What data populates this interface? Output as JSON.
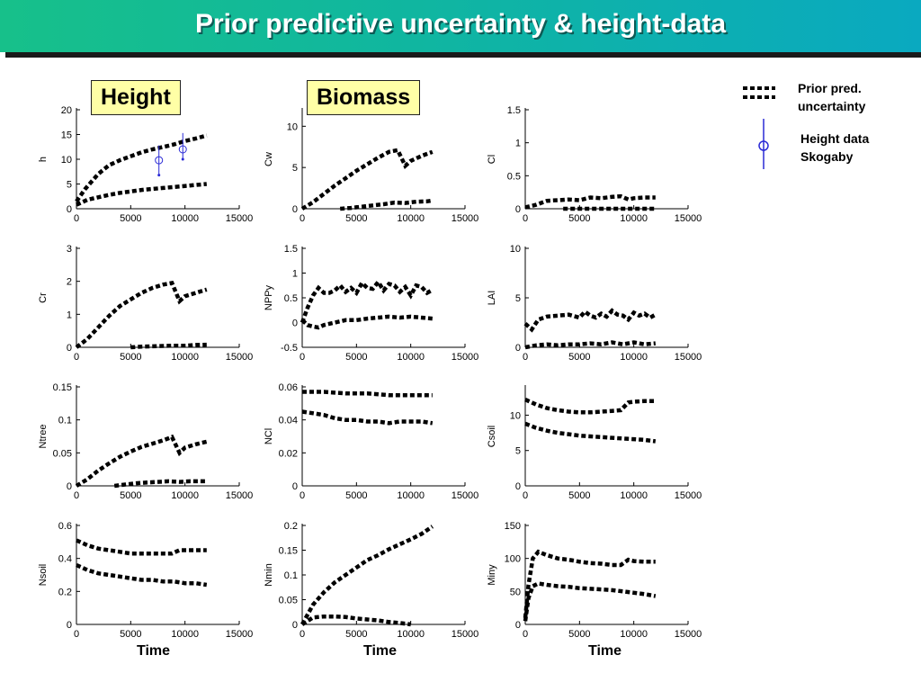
{
  "title": "Prior predictive uncertainty & height-data",
  "labels": {
    "height": "Height",
    "biomass": "Biomass"
  },
  "time_label": "Time",
  "legend": {
    "prior_line1": "Prior pred.",
    "prior_line2": "uncertainty",
    "data_line1": "Height data",
    "data_line2": "Skogaby"
  },
  "colors": {
    "band": "#000000",
    "data": "#2a2ad6",
    "title_bg": "#10b6a0"
  },
  "chart_data": [
    {
      "type": "line",
      "ylabel": "h",
      "ylim": [
        0,
        20
      ],
      "yticks": [
        "0",
        "5",
        "10",
        "15",
        "20"
      ],
      "xlim": [
        0,
        15000
      ],
      "xticks": [
        "0",
        "5000",
        "10000",
        "15000"
      ],
      "series": [
        {
          "x": [
            0,
            800,
            2000,
            3000,
            4000,
            5000,
            6000,
            7000,
            8000,
            9000,
            10000,
            11000,
            12000
          ],
          "y": [
            1.5,
            4,
            7,
            8.8,
            9.8,
            10.6,
            11.4,
            12,
            12.5,
            13,
            13.7,
            14.2,
            14.8
          ]
        },
        {
          "x": [
            0,
            1000,
            2000,
            3000,
            4000,
            5000,
            6000,
            7000,
            8000,
            9000,
            10000,
            11000,
            12000
          ],
          "y": [
            0.8,
            1.8,
            2.3,
            2.8,
            3.2,
            3.5,
            3.8,
            4,
            4.2,
            4.4,
            4.6,
            4.8,
            5
          ]
        }
      ],
      "points": [
        {
          "x": 7600,
          "y": 9.8,
          "ylo": 6.8,
          "yhi": 12.8
        },
        {
          "x": 9800,
          "y": 12,
          "ylo": 10,
          "yhi": 15.3
        }
      ]
    },
    {
      "type": "line",
      "ylabel": "Cw",
      "ylim": [
        0,
        12
      ],
      "yticks": [
        "0",
        "5",
        "10"
      ],
      "xlim": [
        0,
        15000
      ],
      "xticks": [
        "0",
        "5000",
        "10000",
        "15000"
      ],
      "series": [
        {
          "x": [
            0,
            1000,
            2000,
            3000,
            4000,
            5000,
            6000,
            7000,
            8000,
            8800,
            9500,
            10000,
            11000,
            12000
          ],
          "y": [
            0,
            0.8,
            1.8,
            2.8,
            3.7,
            4.6,
            5.4,
            6.2,
            6.9,
            7.1,
            5.2,
            5.8,
            6.4,
            6.9
          ]
        },
        {
          "x": [
            3500,
            4500,
            5500,
            6500,
            7500,
            8500,
            9500,
            10500,
            11500,
            12000
          ],
          "y": [
            0,
            0.1,
            0.25,
            0.4,
            0.55,
            0.75,
            0.7,
            0.85,
            0.9,
            1.0
          ]
        }
      ]
    },
    {
      "type": "line",
      "ylabel": "Cl",
      "ylim": [
        0,
        1.5
      ],
      "yticks": [
        "0",
        "0.5",
        "1",
        "1.5"
      ],
      "xlim": [
        0,
        15000
      ],
      "xticks": [
        "0",
        "5000",
        "10000",
        "15000"
      ],
      "series": [
        {
          "x": [
            0,
            1000,
            2000,
            3000,
            4000,
            5000,
            6000,
            7000,
            8000,
            8800,
            9500,
            10000,
            11000,
            12000
          ],
          "y": [
            0.02,
            0.06,
            0.12,
            0.13,
            0.14,
            0.13,
            0.17,
            0.16,
            0.18,
            0.19,
            0.14,
            0.16,
            0.17,
            0.17
          ]
        },
        {
          "x": [
            3500,
            5000,
            6500,
            8000,
            9500,
            11000,
            12000
          ],
          "y": [
            0,
            0,
            0,
            0,
            0,
            0,
            0
          ]
        }
      ]
    },
    {
      "type": "line",
      "ylabel": "Cr",
      "ylim": [
        0,
        3
      ],
      "yticks": [
        "0",
        "1",
        "2",
        "3"
      ],
      "xlim": [
        0,
        15000
      ],
      "xticks": [
        "0",
        "5000",
        "10000",
        "15000"
      ],
      "series": [
        {
          "x": [
            0,
            1000,
            2000,
            3000,
            4000,
            5000,
            6000,
            7000,
            8000,
            8800,
            9500,
            10000,
            11000,
            12000
          ],
          "y": [
            0,
            0.25,
            0.6,
            0.95,
            1.25,
            1.45,
            1.65,
            1.8,
            1.9,
            1.95,
            1.4,
            1.55,
            1.65,
            1.75
          ]
        },
        {
          "x": [
            5000,
            6000,
            7000,
            8000,
            9000,
            10000,
            11000,
            12000
          ],
          "y": [
            0,
            0.02,
            0.03,
            0.04,
            0.05,
            0.05,
            0.07,
            0.08
          ]
        }
      ]
    },
    {
      "type": "line",
      "ylabel": "NPPy",
      "ylim": [
        -0.5,
        1.5
      ],
      "yticks": [
        "-0.5",
        "0",
        "0.5",
        "1",
        "1.5"
      ],
      "xlim": [
        0,
        15000
      ],
      "xticks": [
        "0",
        "5000",
        "10000",
        "15000"
      ],
      "series": [
        {
          "x": [
            0,
            500,
            1000,
            1500,
            2000,
            2500,
            3000,
            3500,
            4000,
            4500,
            5000,
            5500,
            6000,
            6500,
            7000,
            7500,
            8000,
            8500,
            9000,
            9500,
            10000,
            10500,
            11000,
            11500,
            12000
          ],
          "y": [
            0,
            0.3,
            0.55,
            0.7,
            0.6,
            0.6,
            0.65,
            0.75,
            0.62,
            0.7,
            0.6,
            0.8,
            0.7,
            0.68,
            0.82,
            0.65,
            0.78,
            0.75,
            0.62,
            0.72,
            0.55,
            0.75,
            0.72,
            0.6,
            0.66
          ]
        },
        {
          "x": [
            0,
            500,
            1000,
            1500,
            2000,
            3000,
            4000,
            5000,
            6000,
            7000,
            8000,
            9000,
            10000,
            11000,
            12000
          ],
          "y": [
            0.05,
            -0.05,
            -0.08,
            -0.1,
            -0.05,
            0,
            0.05,
            0.05,
            0.08,
            0.1,
            0.12,
            0.1,
            0.12,
            0.1,
            0.08
          ]
        }
      ]
    },
    {
      "type": "line",
      "ylabel": "LAI",
      "ylim": [
        0,
        10
      ],
      "yticks": [
        "0",
        "5",
        "10"
      ],
      "xlim": [
        0,
        15000
      ],
      "xticks": [
        "0",
        "5000",
        "10000",
        "15000"
      ],
      "series": [
        {
          "x": [
            0,
            600,
            1200,
            2000,
            3000,
            4000,
            5000,
            5500,
            6000,
            6500,
            7000,
            7500,
            8000,
            8500,
            9000,
            9500,
            10000,
            10500,
            11000,
            11500,
            12000
          ],
          "y": [
            2.4,
            1.8,
            2.8,
            3.1,
            3.2,
            3.3,
            3.0,
            3.6,
            3.2,
            3.0,
            3.4,
            3.1,
            3.7,
            3.3,
            3.2,
            2.8,
            3.5,
            3.2,
            3.4,
            3.0,
            3.3
          ]
        },
        {
          "x": [
            0,
            1000,
            2000,
            3000,
            4000,
            5000,
            6000,
            7000,
            8000,
            9000,
            10000,
            11000,
            12000
          ],
          "y": [
            0,
            0.2,
            0.3,
            0.2,
            0.3,
            0.3,
            0.4,
            0.3,
            0.5,
            0.3,
            0.5,
            0.3,
            0.4
          ]
        }
      ]
    },
    {
      "type": "line",
      "ylabel": "Ntree",
      "ylim": [
        0,
        0.15
      ],
      "yticks": [
        "0",
        "0.05",
        "0.1",
        "0.15"
      ],
      "xlim": [
        0,
        15000
      ],
      "xticks": [
        "0",
        "5000",
        "10000",
        "15000"
      ],
      "series": [
        {
          "x": [
            0,
            1000,
            2000,
            3000,
            4000,
            5000,
            6000,
            7000,
            8000,
            8800,
            9500,
            10000,
            11000,
            12000
          ],
          "y": [
            0,
            0.01,
            0.023,
            0.034,
            0.044,
            0.052,
            0.059,
            0.064,
            0.069,
            0.074,
            0.05,
            0.058,
            0.063,
            0.067
          ]
        },
        {
          "x": [
            3500,
            4500,
            5500,
            6500,
            7500,
            8500,
            9500,
            10500,
            11500,
            12000
          ],
          "y": [
            0,
            0.002,
            0.004,
            0.005,
            0.006,
            0.007,
            0.006,
            0.007,
            0.007,
            0.007
          ]
        }
      ]
    },
    {
      "type": "line",
      "ylabel": "NCl",
      "ylim": [
        0,
        0.06
      ],
      "yticks": [
        "0",
        "0.02",
        "0.04",
        "0.06"
      ],
      "xlim": [
        0,
        15000
      ],
      "xticks": [
        "0",
        "5000",
        "10000",
        "15000"
      ],
      "series": [
        {
          "x": [
            0,
            2000,
            4000,
            6000,
            8000,
            10000,
            12000
          ],
          "y": [
            0.057,
            0.057,
            0.056,
            0.056,
            0.055,
            0.055,
            0.055
          ]
        },
        {
          "x": [
            0,
            1000,
            2000,
            3000,
            4000,
            5000,
            6000,
            7000,
            8000,
            9000,
            10000,
            11000,
            12000
          ],
          "y": [
            0.045,
            0.044,
            0.043,
            0.041,
            0.04,
            0.04,
            0.039,
            0.039,
            0.038,
            0.039,
            0.039,
            0.039,
            0.038
          ]
        }
      ]
    },
    {
      "type": "line",
      "ylabel": "Csoil",
      "ylim": [
        0,
        14
      ],
      "yticks": [
        "0",
        "5",
        "10"
      ],
      "xlim": [
        0,
        15000
      ],
      "xticks": [
        "0",
        "5000",
        "10000",
        "15000"
      ],
      "series": [
        {
          "x": [
            0,
            1000,
            2000,
            3000,
            4000,
            5000,
            6000,
            7000,
            8000,
            8800,
            9500,
            10000,
            11000,
            12000
          ],
          "y": [
            12.2,
            11.5,
            11,
            10.7,
            10.5,
            10.4,
            10.4,
            10.5,
            10.6,
            10.7,
            11.8,
            11.9,
            12,
            12
          ]
        },
        {
          "x": [
            0,
            1000,
            2000,
            3000,
            4000,
            5000,
            6000,
            7000,
            8000,
            9000,
            10000,
            11000,
            12000
          ],
          "y": [
            8.8,
            8.2,
            7.8,
            7.5,
            7.3,
            7.1,
            7,
            6.9,
            6.8,
            6.7,
            6.6,
            6.5,
            6.3
          ]
        }
      ]
    },
    {
      "type": "line",
      "ylabel": "Nsoil",
      "ylim": [
        0,
        0.6
      ],
      "yticks": [
        "0",
        "0.2",
        "0.4",
        "0.6"
      ],
      "xlim": [
        0,
        15000
      ],
      "xticks": [
        "0",
        "5000",
        "10000",
        "15000"
      ],
      "series": [
        {
          "x": [
            0,
            1000,
            2000,
            3000,
            4000,
            5000,
            6000,
            7000,
            8000,
            8800,
            9500,
            10000,
            11000,
            12000
          ],
          "y": [
            0.51,
            0.48,
            0.46,
            0.45,
            0.44,
            0.43,
            0.43,
            0.43,
            0.43,
            0.43,
            0.45,
            0.45,
            0.45,
            0.45
          ]
        },
        {
          "x": [
            0,
            1000,
            2000,
            3000,
            4000,
            5000,
            6000,
            7000,
            8000,
            9000,
            10000,
            11000,
            12000
          ],
          "y": [
            0.36,
            0.33,
            0.31,
            0.3,
            0.29,
            0.28,
            0.27,
            0.27,
            0.26,
            0.26,
            0.25,
            0.25,
            0.24
          ]
        }
      ]
    },
    {
      "type": "line",
      "ylabel": "Nmin",
      "ylim": [
        0,
        0.2
      ],
      "yticks": [
        "0",
        "0.05",
        "0.1",
        "0.15",
        "0.2"
      ],
      "xlim": [
        0,
        15000
      ],
      "xticks": [
        "0",
        "5000",
        "10000",
        "15000"
      ],
      "series": [
        {
          "x": [
            0,
            1000,
            2000,
            3000,
            4000,
            5000,
            6000,
            7000,
            8000,
            9000,
            10000,
            11000,
            12000
          ],
          "y": [
            0,
            0.04,
            0.065,
            0.085,
            0.1,
            0.115,
            0.13,
            0.14,
            0.152,
            0.162,
            0.172,
            0.183,
            0.198
          ]
        },
        {
          "x": [
            0,
            1000,
            2000,
            3000,
            4000,
            5000,
            6000,
            7000,
            8000,
            9000,
            10000
          ],
          "y": [
            0,
            0.014,
            0.016,
            0.016,
            0.015,
            0.012,
            0.01,
            0.008,
            0.005,
            0.003,
            0
          ]
        }
      ]
    },
    {
      "type": "line",
      "ylabel": "Miny",
      "ylim": [
        0,
        150
      ],
      "yticks": [
        "0",
        "50",
        "100",
        "150"
      ],
      "xlim": [
        0,
        15000
      ],
      "xticks": [
        "0",
        "5000",
        "10000",
        "15000"
      ],
      "series": [
        {
          "x": [
            0,
            300,
            700,
            1200,
            2000,
            3000,
            4000,
            5000,
            6000,
            7000,
            8000,
            8800,
            9500,
            10000,
            11000,
            12000
          ],
          "y": [
            10,
            60,
            100,
            110,
            105,
            100,
            98,
            95,
            93,
            92,
            90,
            90,
            98,
            96,
            95,
            95
          ]
        },
        {
          "x": [
            0,
            300,
            700,
            1200,
            2000,
            3000,
            4000,
            5000,
            6000,
            7000,
            8000,
            9000,
            10000,
            11000,
            12000
          ],
          "y": [
            5,
            40,
            58,
            62,
            60,
            58,
            57,
            55,
            54,
            53,
            52,
            50,
            48,
            46,
            43
          ]
        }
      ]
    }
  ]
}
